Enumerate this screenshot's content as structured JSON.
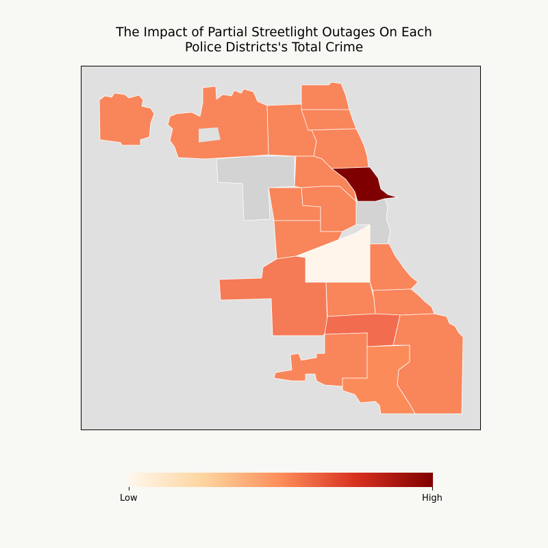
{
  "title": {
    "line1": "The Impact of Partial Streetlight Outages On Each",
    "line2": "Police Districts's Total Crime"
  },
  "colors": {
    "map_background": "#e0e0e0",
    "no_data": "#d3d3d3",
    "border": "#ffffff"
  },
  "colorbar": {
    "colormap": "OrRd",
    "stops": [
      "#fff7ec",
      "#fdd49e",
      "#fc8d59",
      "#d7301f",
      "#7f0000"
    ],
    "low_label": "Low",
    "high_label": "High"
  },
  "districts": [
    {
      "id": "far-northwest",
      "color": "#f9855a"
    },
    {
      "id": "northwest",
      "color": "#f9855a"
    },
    {
      "id": "north-central",
      "color": "#f9855a"
    },
    {
      "id": "far-north",
      "color": "#f9855a"
    },
    {
      "id": "north-lakeshore",
      "color": "#f9855a"
    },
    {
      "id": "lakeview",
      "color": "#7f0000"
    },
    {
      "id": "west-central",
      "color": "#f9855a"
    },
    {
      "id": "near-west",
      "color": "#f9855a"
    },
    {
      "id": "garfield-park",
      "color": "#f9855a"
    },
    {
      "id": "logan-square",
      "color": "#f9855a"
    },
    {
      "id": "near-north",
      "color": "#f9855a"
    },
    {
      "id": "downtown",
      "color": "#d3d3d3"
    },
    {
      "id": "near-south",
      "color": "#f9855a"
    },
    {
      "id": "bridgeport",
      "color": "#fff5eb"
    },
    {
      "id": "southwest",
      "color": "#f57a56"
    },
    {
      "id": "chicago-lawn",
      "color": "#f9855a"
    },
    {
      "id": "englewood",
      "color": "#f26c4f"
    },
    {
      "id": "grand-crossing",
      "color": "#f9855a"
    },
    {
      "id": "south-chicago",
      "color": "#f9855a"
    },
    {
      "id": "morgan-park",
      "color": "#f9855a"
    },
    {
      "id": "calumet",
      "color": "#fb8c5a"
    },
    {
      "id": "northwest-gap",
      "color": "#d3d3d3"
    }
  ]
}
